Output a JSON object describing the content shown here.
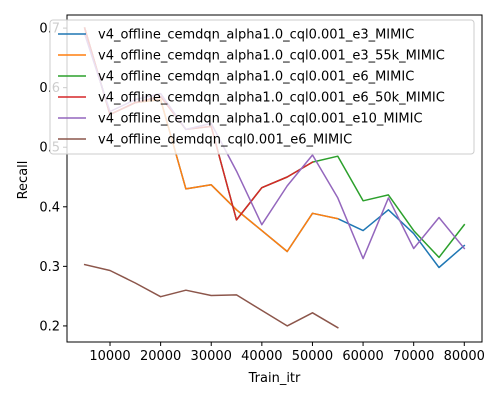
{
  "chart_data": {
    "type": "line",
    "title": "",
    "xlabel": "Train_itr",
    "ylabel": "Recall",
    "xlim": [
      1500,
      83500
    ],
    "ylim": [
      0.173,
      0.722
    ],
    "xticks": [
      10000,
      20000,
      30000,
      40000,
      50000,
      60000,
      70000,
      80000
    ],
    "yticks": [
      0.2,
      0.3,
      0.4,
      0.5,
      0.6,
      0.7
    ],
    "ytick_labels": [
      "0.2",
      "0.3",
      "0.4",
      "0.5",
      "0.6",
      "0.7"
    ],
    "grid": false,
    "legend_position": "top-left",
    "series": [
      {
        "name": "v4_offline_cemdqn_alpha1.0_cql0.001_e3_MIMIC",
        "color": "#1f77b4",
        "x": [
          5000,
          10000,
          15000,
          20000,
          25000,
          30000,
          35000,
          40000,
          45000,
          50000,
          55000,
          60000,
          65000,
          70000,
          75000,
          80000
        ],
        "y": [
          0.7,
          0.555,
          0.575,
          0.58,
          0.43,
          0.437,
          0.395,
          0.36,
          0.325,
          0.389,
          0.38,
          0.36,
          0.395,
          0.355,
          0.298,
          0.335
        ]
      },
      {
        "name": "v4_offline_cemdqn_alpha1.0_cql0.001_e3_55k_MIMIC",
        "color": "#ff7f0e",
        "x": [
          5000,
          10000,
          15000,
          20000,
          25000,
          30000,
          35000,
          40000,
          45000,
          50000,
          55000
        ],
        "y": [
          0.7,
          0.555,
          0.575,
          0.58,
          0.43,
          0.437,
          0.395,
          0.36,
          0.325,
          0.389,
          0.38
        ]
      },
      {
        "name": "v4_offline_cemdqn_alpha1.0_cql0.001_e6_MIMIC",
        "color": "#2ca02c",
        "x": [
          5000,
          10000,
          15000,
          20000,
          25000,
          30000,
          35000,
          40000,
          45000,
          50000,
          55000,
          60000,
          65000,
          70000,
          75000,
          80000
        ],
        "y": [
          0.7,
          0.555,
          0.575,
          0.585,
          0.53,
          0.535,
          0.378,
          0.432,
          0.45,
          0.475,
          0.485,
          0.41,
          0.42,
          0.36,
          0.315,
          0.37
        ]
      },
      {
        "name": "v4_offline_cemdqn_alpha1.0_cql0.001_e6_50k_MIMIC",
        "color": "#d62728",
        "x": [
          5000,
          10000,
          15000,
          20000,
          25000,
          30000,
          35000,
          40000,
          45000,
          50000
        ],
        "y": [
          0.7,
          0.555,
          0.575,
          0.585,
          0.53,
          0.535,
          0.378,
          0.432,
          0.45,
          0.475
        ]
      },
      {
        "name": "v4_offline_cemdqn_alpha1.0_cql0.001_e10_MIMIC",
        "color": "#9467bd",
        "x": [
          5000,
          10000,
          15000,
          20000,
          25000,
          30000,
          35000,
          40000,
          45000,
          50000,
          55000,
          60000,
          65000,
          70000,
          75000,
          80000
        ],
        "y": [
          0.69,
          0.56,
          0.58,
          0.59,
          0.53,
          0.54,
          0.46,
          0.37,
          0.435,
          0.487,
          0.415,
          0.313,
          0.415,
          0.33,
          0.382,
          0.33
        ]
      },
      {
        "name": "v4_offline_demdqn_cql0.001_e6_MIMIC",
        "color": "#8c564b",
        "x": [
          5000,
          10000,
          15000,
          20000,
          25000,
          30000,
          35000,
          40000,
          45000,
          50000,
          55000
        ],
        "y": [
          0.303,
          0.293,
          0.272,
          0.249,
          0.26,
          0.251,
          0.252,
          0.226,
          0.2,
          0.222,
          0.197
        ]
      }
    ]
  }
}
